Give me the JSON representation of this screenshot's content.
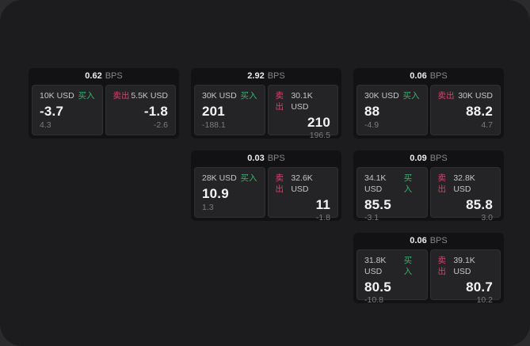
{
  "labels": {
    "bps": "BPS",
    "buy": "买入",
    "sell": "卖出"
  },
  "colors": {
    "buy_green": "#3ab06f",
    "sell_red": "#c9486a",
    "surface": "#1c1c1e",
    "card_bg": "#121214",
    "panel_bg": "#242427"
  },
  "cards": [
    {
      "bps": "0.62",
      "buy": {
        "amount": "10K USD",
        "value": "-3.7",
        "sub": "4.3"
      },
      "sell": {
        "amount": "5.5K USD",
        "value": "-1.8",
        "sub": "-2.6"
      }
    },
    {
      "bps": "2.92",
      "buy": {
        "amount": "30K USD",
        "value": "201",
        "sub": "-188.1"
      },
      "sell": {
        "amount": "30.1K USD",
        "value": "210",
        "sub": "196.5"
      }
    },
    {
      "bps": "0.06",
      "buy": {
        "amount": "30K USD",
        "value": "88",
        "sub": "-4.9"
      },
      "sell": {
        "amount": "30K USD",
        "value": "88.2",
        "sub": "4.7"
      }
    },
    {
      "bps": "0.03",
      "buy": {
        "amount": "28K USD",
        "value": "10.9",
        "sub": "1.3"
      },
      "sell": {
        "amount": "32.6K USD",
        "value": "11",
        "sub": "-1.8"
      }
    },
    {
      "bps": "0.09",
      "buy": {
        "amount": "34.1K USD",
        "value": "85.5",
        "sub": "-3.1"
      },
      "sell": {
        "amount": "32.8K USD",
        "value": "85.8",
        "sub": "3.0"
      }
    },
    {
      "bps": "0.06",
      "buy": {
        "amount": "31.8K USD",
        "value": "80.5",
        "sub": "-10.8"
      },
      "sell": {
        "amount": "39.1K USD",
        "value": "80.7",
        "sub": "10.2"
      }
    }
  ]
}
